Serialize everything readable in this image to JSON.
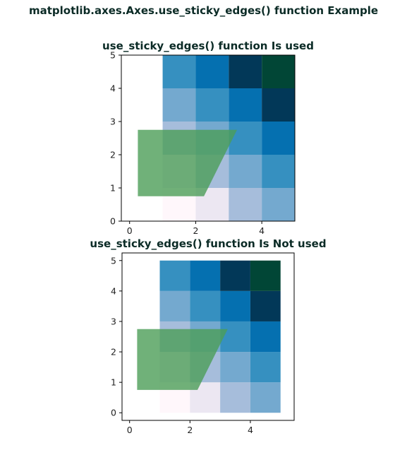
{
  "figure": {
    "suptitle": "matplotlib.axes.Axes.use_sticky_edges() function Example"
  },
  "colors": {
    "polygon": "#4c9e58",
    "cmap": [
      "#fff7fb",
      "#ece7f2",
      "#d0d1e6",
      "#a6bddb",
      "#74a9cf",
      "#3690c0",
      "#0570b0",
      "#045a8d",
      "#023858",
      "#014636"
    ]
  },
  "chart_data": [
    {
      "type": "heatmap",
      "title": "use_sticky_edges() function Is used",
      "xlim": [
        -0.25,
        5
      ],
      "ylim": [
        0,
        5
      ],
      "xticks": [
        0,
        2,
        4
      ],
      "yticks": [
        0,
        1,
        2,
        3,
        4,
        5
      ],
      "xticklabels": [
        "0",
        "2",
        "4"
      ],
      "yticklabels": [
        "0",
        "1",
        "2",
        "3",
        "4",
        "5"
      ],
      "grid": false,
      "image": {
        "x_range": [
          1,
          5
        ],
        "y_range": [
          0,
          5
        ],
        "values": [
          [
            0,
            1,
            2,
            3
          ],
          [
            1,
            2,
            3,
            4
          ],
          [
            2,
            3,
            4,
            5
          ],
          [
            3,
            4,
            5,
            6
          ],
          [
            4,
            5,
            6,
            7
          ]
        ]
      },
      "polygon": {
        "points": [
          [
            0.25,
            0.75
          ],
          [
            2.25,
            0.75
          ],
          [
            3.25,
            2.75
          ],
          [
            0.25,
            2.75
          ]
        ],
        "alpha": 0.8
      }
    },
    {
      "type": "heatmap",
      "title": "use_sticky_edges() function Is Not used",
      "xlim": [
        -0.25,
        5.45
      ],
      "ylim": [
        -0.25,
        5.25
      ],
      "xticks": [
        0,
        2,
        4
      ],
      "yticks": [
        0,
        1,
        2,
        3,
        4,
        5
      ],
      "xticklabels": [
        "0",
        "2",
        "4"
      ],
      "yticklabels": [
        "0",
        "1",
        "2",
        "3",
        "4",
        "5"
      ],
      "grid": false,
      "image": {
        "x_range": [
          1,
          5
        ],
        "y_range": [
          0,
          5
        ],
        "values": [
          [
            0,
            1,
            2,
            3
          ],
          [
            1,
            2,
            3,
            4
          ],
          [
            2,
            3,
            4,
            5
          ],
          [
            3,
            4,
            5,
            6
          ],
          [
            4,
            5,
            6,
            7
          ]
        ]
      },
      "polygon": {
        "points": [
          [
            0.25,
            0.75
          ],
          [
            2.25,
            0.75
          ],
          [
            3.25,
            2.75
          ],
          [
            0.25,
            2.75
          ]
        ],
        "alpha": 0.8
      }
    }
  ]
}
